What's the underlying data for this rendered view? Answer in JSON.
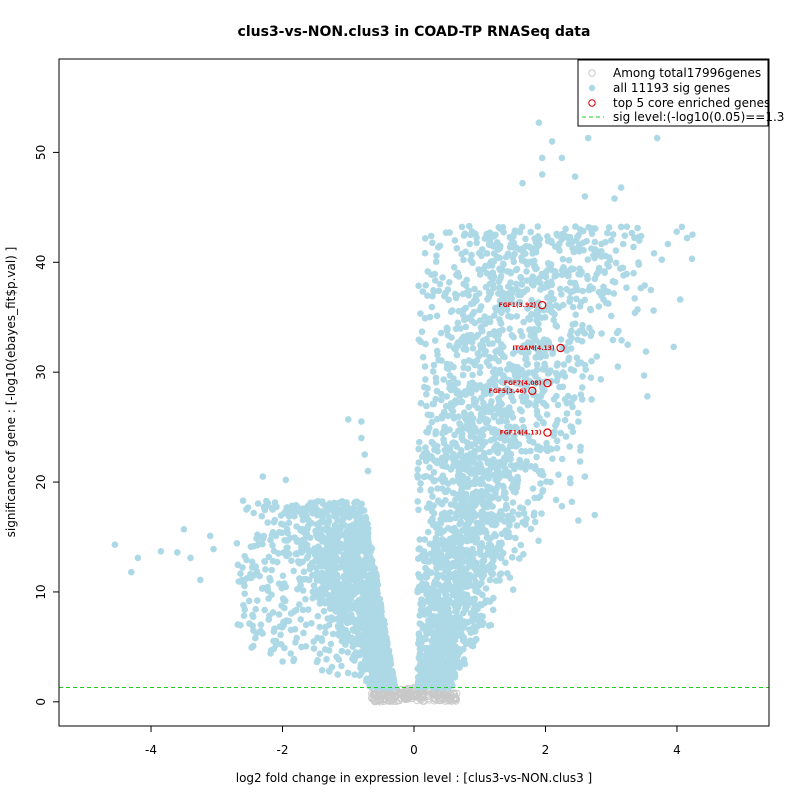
{
  "chart_data": {
    "type": "scatter",
    "title": "clus3-vs-NON.clus3 in COAD-TP RNASeq data",
    "xlabel": "log2 fold change in expression level : [clus3-vs-NON.clus3 ]",
    "ylabel": "significance of gene : [-log10(ebayes_fit$p.val) ]",
    "xlim": [
      -5.4,
      5.4
    ],
    "ylim": [
      -2.2,
      58.5
    ],
    "x_ticks": [
      -4,
      -2,
      0,
      2,
      4
    ],
    "x_tick_labels": [
      "-4",
      "-2",
      "0",
      "2",
      "4"
    ],
    "y_ticks": [
      0,
      10,
      20,
      30,
      40,
      50
    ],
    "y_tick_labels": [
      "0",
      "10",
      "20",
      "30",
      "40",
      "50"
    ],
    "grid": false,
    "legend_position": "top-right",
    "legend": [
      {
        "label": "Among total17996genes",
        "marker": "open-circle",
        "color": "#c8c8c8"
      },
      {
        "label": "all 11193 sig genes",
        "marker": "filled-circle",
        "color": "#add8e6"
      },
      {
        "label": "top 5 core enriched genes",
        "marker": "open-circle",
        "color": "#e00000"
      },
      {
        "label": "sig level:(-log10(0.05)==1.3",
        "marker": "dashed-line",
        "color": "#22cc22"
      }
    ],
    "sig_level": 1.3,
    "colors": {
      "nonsig": "#c8c8c8",
      "sig": "#add8e6",
      "top": "#e00000",
      "threshold": "#22cc22"
    },
    "series": [
      {
        "name": "all 11193 sig genes",
        "points": [
          [
            -4.55,
            14.3
          ],
          [
            -4.3,
            11.8
          ],
          [
            -4.2,
            13.1
          ],
          [
            -3.85,
            13.7
          ],
          [
            -3.6,
            13.6
          ],
          [
            -3.5,
            15.7
          ],
          [
            -3.4,
            13.1
          ],
          [
            -3.25,
            11.1
          ],
          [
            -3.1,
            15.1
          ],
          [
            -3.05,
            13.9
          ],
          [
            -2.6,
            18.3
          ],
          [
            -2.55,
            17.5
          ],
          [
            -2.3,
            20.5
          ],
          [
            -2.15,
            17.5
          ],
          [
            -1.95,
            20.2
          ],
          [
            -1.0,
            25.7
          ],
          [
            -0.8,
            25.5
          ],
          [
            -0.8,
            24.0
          ],
          [
            -0.75,
            22.5
          ],
          [
            -0.7,
            21.0
          ],
          [
            1.3,
            37.7
          ],
          [
            1.65,
            47.2
          ],
          [
            1.9,
            52.7
          ],
          [
            1.95,
            49.5
          ],
          [
            1.95,
            48.0
          ],
          [
            2.1,
            51.0
          ],
          [
            2.25,
            49.5
          ],
          [
            2.45,
            47.8
          ],
          [
            2.6,
            46.0
          ],
          [
            2.65,
            51.3
          ],
          [
            3.15,
            46.8
          ],
          [
            3.05,
            45.8
          ],
          [
            3.4,
            35.7
          ],
          [
            3.5,
            29.7
          ],
          [
            3.55,
            27.8
          ],
          [
            3.95,
            32.3
          ],
          [
            4.05,
            36.6
          ],
          [
            3.7,
            51.3
          ],
          [
            3.25,
            32.5
          ],
          [
            3.1,
            30.5
          ],
          [
            2.85,
            41.0
          ],
          [
            2.75,
            38.5
          ],
          [
            3.0,
            42.0
          ],
          [
            2.7,
            31.0
          ],
          [
            2.5,
            25.5
          ],
          [
            2.6,
            20.5
          ],
          [
            2.4,
            18.2
          ],
          [
            2.75,
            17.0
          ],
          [
            2.5,
            16.5
          ],
          [
            2.25,
            17.8
          ]
        ]
      },
      {
        "name": "top 5 core enriched genes",
        "points": [
          {
            "label": "FGF1(3.92)",
            "x": 1.95,
            "y": 36.1
          },
          {
            "label": "ITGAM(4.13)",
            "x": 2.23,
            "y": 32.2
          },
          {
            "label": "FGF7(4.08)",
            "x": 2.03,
            "y": 29.0
          },
          {
            "label": "FGF5(3.46)",
            "x": 1.8,
            "y": 28.3
          },
          {
            "label": "FGF14(4.13)",
            "x": 2.03,
            "y": 24.5
          }
        ]
      }
    ]
  }
}
